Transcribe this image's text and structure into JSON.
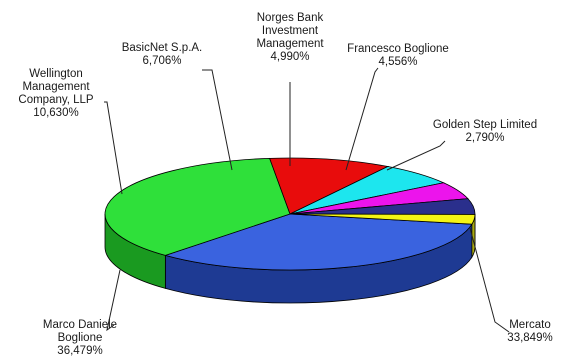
{
  "chart_data": {
    "type": "pie",
    "style": "3d",
    "categories": [
      "Mercato",
      "Marco Daniele Boglione",
      "Wellington Management Company, LLP",
      "BasicNet S.p.A.",
      "Norges Bank Investment Management",
      "Francesco Boglione",
      "Golden Step Limited"
    ],
    "values": [
      33.849,
      36.479,
      10.63,
      6.706,
      4.99,
      4.556,
      2.79
    ],
    "value_labels": [
      "33,849%",
      "36,479%",
      "10,630%",
      "6,706%",
      "4,990%",
      "4,556%",
      "2,790%"
    ],
    "label_lines": [
      [
        "Mercato",
        "33,849%"
      ],
      [
        "Marco Daniele",
        "Boglione",
        "36,479%"
      ],
      [
        "Wellington",
        "Management",
        "Company, LLP",
        "10,630%"
      ],
      [
        "BasicNet S.p.A.",
        "6,706%"
      ],
      [
        "Norges Bank",
        "Investment",
        "Management",
        "4,990%"
      ],
      [
        "Francesco Boglione",
        "4,556%"
      ],
      [
        "Golden Step Limited",
        "2,790%"
      ]
    ],
    "colors": {
      "top": [
        "#3a63df",
        "#2fe03a",
        "#e80c0c",
        "#1de6ee",
        "#ec14ec",
        "#2a2f8c",
        "#f4f414"
      ],
      "side": [
        "#1e3a93",
        "#1a9a20",
        "#9c0808",
        "#129aa0",
        "#9c0c9c",
        "#181c5c",
        "#a8a810"
      ]
    }
  }
}
